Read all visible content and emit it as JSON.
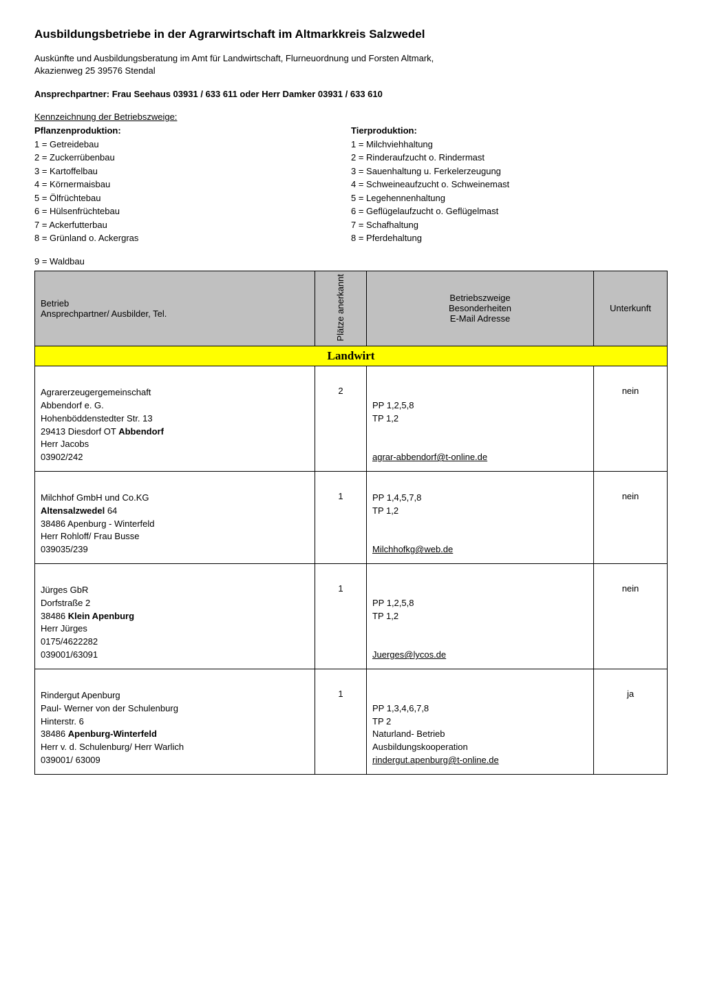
{
  "title": "Ausbildungsbetriebe in der Agrarwirtschaft im Altmarkkreis Salzwedel",
  "intro_line1": "Auskünfte und Ausbildungsberatung im Amt für Landwirtschaft, Flurneuordnung und Forsten Altmark,",
  "intro_line2": "Akazienweg 25 39576 Stendal",
  "contact": "Ansprechpartner: Frau Seehaus 03931 / 633 611 oder Herr Damker 03931 / 633 610",
  "kennz_title": "Kennzeichnung der Betriebszweige:",
  "columns": {
    "left_title": "Pflanzenproduktion:",
    "right_title": "Tierproduktion:",
    "left": [
      "1 = Getreidebau",
      "2 = Zuckerrübenbau",
      "3 = Kartoffelbau",
      "4 = Körnermaisbau",
      "5 = Ölfrüchtebau",
      "6 = Hülsenfrüchtebau",
      "7 = Ackerfutterbau",
      "8 = Grünland  o. Ackergras"
    ],
    "right": [
      "1 = Milchviehhaltung",
      "2 = Rinderaufzucht o. Rindermast",
      "3 = Sauenhaltung u. Ferkelerzeugung",
      "4 = Schweineaufzucht o. Schweinemast",
      "5 = Legehennenhaltung",
      "6 = Geflügelaufzucht o. Geflügelmast",
      "7 = Schafhaltung",
      "8 = Pferdehaltung"
    ]
  },
  "extra_line": "9 = Waldbau",
  "table": {
    "headers": {
      "betrieb_line1": "Betrieb",
      "betrieb_line2": "Ansprechpartner/ Ausbilder, Tel.",
      "jahr": "Plätze anerkannt",
      "zweige_line1": "Betriebszweige",
      "zweige_line2": "Besonderheiten",
      "zweige_line3": "E-Mail Adresse",
      "unterkunft": "Unterkunft"
    },
    "section": "Landwirt",
    "rows": [
      {
        "left": [
          "",
          "Agrarerzeugergemeinschaft",
          "Abbendorf e. G.",
          "Hohenböddenstedter Str. 13",
          "29413 Diesdorf OT Abbendorf",
          "Herr Jacobs",
          "03902/242"
        ],
        "bold_idx": 4,
        "bold_word": "Abbendorf",
        "jahr": "2",
        "mid_lines": [
          "",
          "",
          "PP 1,2,5,8",
          "TP 1,2",
          "",
          ""
        ],
        "mail": "agrar-abbendorf@t-online.de",
        "unterkunft": "nein"
      },
      {
        "left": [
          "",
          "Milchhof GmbH und Co.KG",
          "Altensalzwedel 64",
          "38486 Apenburg - Winterfeld",
          "Herr Rohloff/ Frau Busse",
          "039035/239"
        ],
        "bold_idx": 2,
        "bold_word": "Altensalzwedel",
        "jahr": "1",
        "mid_lines": [
          "",
          "PP 1,4,5,7,8",
          "TP 1,2",
          "",
          ""
        ],
        "mail": "Milchhofkg@web.de",
        "unterkunft": "nein"
      },
      {
        "left": [
          "",
          "Jürges GbR",
          "Dorfstraße 2",
          "38486 Klein Apenburg",
          "Herr Jürges",
          "0175/4622282",
          "039001/63091"
        ],
        "bold_idx": 3,
        "bold_word": "Klein Apenburg",
        "jahr": "1",
        "mid_lines": [
          "",
          "",
          "PP 1,2,5,8",
          "TP 1,2",
          "",
          ""
        ],
        "mail": "Juerges@lycos.de",
        "unterkunft": "nein"
      },
      {
        "left": [
          "",
          "Rindergut Apenburg",
          "Paul- Werner von der Schulenburg",
          "Hinterstr. 6",
          "38486 Apenburg-Winterfeld",
          "Herr v. d. Schulenburg/ Herr Warlich",
          "039001/ 63009"
        ],
        "bold_idx": 4,
        "bold_word": "Apenburg-Winterfeld",
        "jahr": "1",
        "mid_lines": [
          "",
          "",
          "PP 1,3,4,6,7,8",
          "TP 2",
          "Naturland- Betrieb",
          "Ausbildungskooperation"
        ],
        "mail": "rindergut.apenburg@t-online.de",
        "unterkunft": "ja"
      }
    ]
  }
}
